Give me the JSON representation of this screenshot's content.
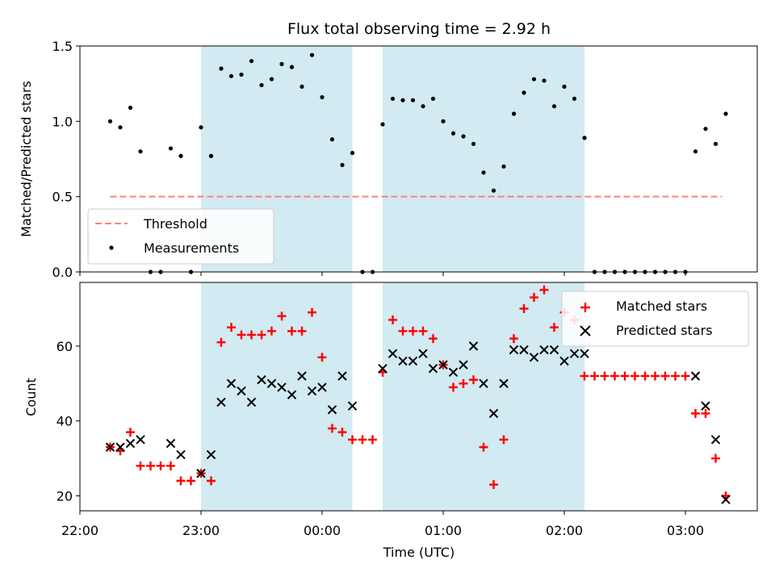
{
  "chart_data": {
    "title": "Flux total observing time = 2.92 h",
    "xlabel": "Time (UTC)",
    "x_ticks": [
      "22:00",
      "23:00",
      "00:00",
      "01:00",
      "02:00",
      "03:00"
    ],
    "shaded_intervals": [
      [
        "23:00",
        "00:15"
      ],
      [
        "00:30",
        "02:10"
      ]
    ],
    "colors": {
      "shade": "#add8e6",
      "threshold": "#ff7f7f",
      "matched": "#ff0000",
      "predicted": "#000000",
      "measurement": "#000000"
    },
    "panels": [
      {
        "type": "scatter",
        "ylabel": "Matched/Predicted stars",
        "ylim": [
          0,
          1.5
        ],
        "yticks": [
          "0.0",
          "0.5",
          "1.0",
          "1.5"
        ],
        "legend_position": "lower-left",
        "series": [
          {
            "name": "Threshold",
            "kind": "line",
            "x": [
              "22:15",
              "03:18"
            ],
            "y": [
              0.5,
              0.5
            ]
          },
          {
            "name": "Measurements",
            "kind": "points",
            "x": [
              "22:15",
              "22:20",
              "22:25",
              "22:30",
              "22:35",
              "22:40",
              "22:45",
              "22:50",
              "22:55",
              "23:00",
              "23:05",
              "23:10",
              "23:15",
              "23:20",
              "23:25",
              "23:30",
              "23:35",
              "23:40",
              "23:45",
              "23:50",
              "23:55",
              "00:00",
              "00:05",
              "00:10",
              "00:15",
              "00:20",
              "00:25",
              "00:30",
              "00:35",
              "00:40",
              "00:45",
              "00:50",
              "00:55",
              "01:00",
              "01:05",
              "01:10",
              "01:15",
              "01:20",
              "01:25",
              "01:30",
              "01:35",
              "01:40",
              "01:45",
              "01:50",
              "01:55",
              "02:00",
              "02:05",
              "02:10",
              "02:15",
              "02:20",
              "02:25",
              "02:30",
              "02:35",
              "02:40",
              "02:45",
              "02:50",
              "02:55",
              "03:00",
              "03:05",
              "03:10",
              "03:15",
              "03:20"
            ],
            "y": [
              1.0,
              0.96,
              1.09,
              0.8,
              0,
              0,
              0.82,
              0.77,
              0,
              0.96,
              0.77,
              1.35,
              1.3,
              1.31,
              1.4,
              1.24,
              1.28,
              1.38,
              1.36,
              1.23,
              1.44,
              1.16,
              0.88,
              0.71,
              0.79,
              0,
              0,
              0.98,
              1.15,
              1.14,
              1.14,
              1.1,
              1.15,
              1.0,
              0.92,
              0.9,
              0.85,
              0.66,
              0.54,
              0.7,
              1.05,
              1.19,
              1.28,
              1.27,
              1.1,
              1.23,
              1.15,
              0.89,
              0,
              0,
              0,
              0,
              0,
              0,
              0,
              0,
              0,
              0,
              0.8,
              0.95,
              0.85,
              1.05
            ]
          }
        ]
      },
      {
        "type": "scatter",
        "ylabel": "Count",
        "ylim": [
          16,
          77
        ],
        "yticks": [
          "20",
          "40",
          "60"
        ],
        "legend_position": "upper-right",
        "series": [
          {
            "name": "Matched stars",
            "kind": "plus",
            "x": [
              "22:15",
              "22:20",
              "22:25",
              "22:30",
              "22:35",
              "22:40",
              "22:45",
              "22:50",
              "22:55",
              "23:00",
              "23:05",
              "23:10",
              "23:15",
              "23:20",
              "23:25",
              "23:30",
              "23:35",
              "23:40",
              "23:45",
              "23:50",
              "23:55",
              "00:00",
              "00:05",
              "00:10",
              "00:15",
              "00:20",
              "00:25",
              "00:30",
              "00:35",
              "00:40",
              "00:45",
              "00:50",
              "00:55",
              "01:00",
              "01:05",
              "01:10",
              "01:15",
              "01:20",
              "01:25",
              "01:30",
              "01:35",
              "01:40",
              "01:45",
              "01:50",
              "01:55",
              "02:00",
              "02:05",
              "02:10",
              "02:15",
              "02:20",
              "02:25",
              "02:30",
              "02:35",
              "02:40",
              "02:45",
              "02:50",
              "02:55",
              "03:00",
              "03:05",
              "03:10",
              "03:15",
              "03:20"
            ],
            "y": [
              33,
              32,
              37,
              28,
              28,
              28,
              28,
              24,
              24,
              26,
              24,
              61,
              65,
              63,
              63,
              63,
              64,
              68,
              64,
              64,
              69,
              57,
              38,
              37,
              35,
              35,
              35,
              53,
              67,
              64,
              64,
              64,
              62,
              55,
              49,
              50,
              51,
              33,
              23,
              35,
              62,
              70,
              73,
              75,
              65,
              69,
              67,
              52,
              52,
              52,
              52,
              52,
              52,
              52,
              52,
              52,
              52,
              52,
              42,
              42,
              30,
              20
            ]
          },
          {
            "name": "Predicted stars",
            "kind": "cross",
            "x": [
              "22:15",
              "22:20",
              "22:25",
              "22:30",
              "22:45",
              "22:50",
              "23:00",
              "23:05",
              "23:10",
              "23:15",
              "23:20",
              "23:25",
              "23:30",
              "23:35",
              "23:40",
              "23:45",
              "23:50",
              "23:55",
              "00:00",
              "00:05",
              "00:10",
              "00:15",
              "00:30",
              "00:35",
              "00:40",
              "00:45",
              "00:50",
              "00:55",
              "01:00",
              "01:05",
              "01:10",
              "01:15",
              "01:20",
              "01:25",
              "01:30",
              "01:35",
              "01:40",
              "01:45",
              "01:50",
              "01:55",
              "02:00",
              "02:05",
              "02:10",
              "03:05",
              "03:10",
              "03:15",
              "03:20"
            ],
            "y": [
              33,
              33,
              34,
              35,
              34,
              31,
              26,
              31,
              45,
              50,
              48,
              45,
              51,
              50,
              49,
              47,
              52,
              48,
              49,
              43,
              52,
              44,
              54,
              58,
              56,
              56,
              58,
              54,
              55,
              53,
              55,
              60,
              50,
              42,
              50,
              59,
              59,
              57,
              59,
              59,
              56,
              58,
              58,
              52,
              44,
              35,
              19
            ]
          }
        ]
      }
    ]
  }
}
